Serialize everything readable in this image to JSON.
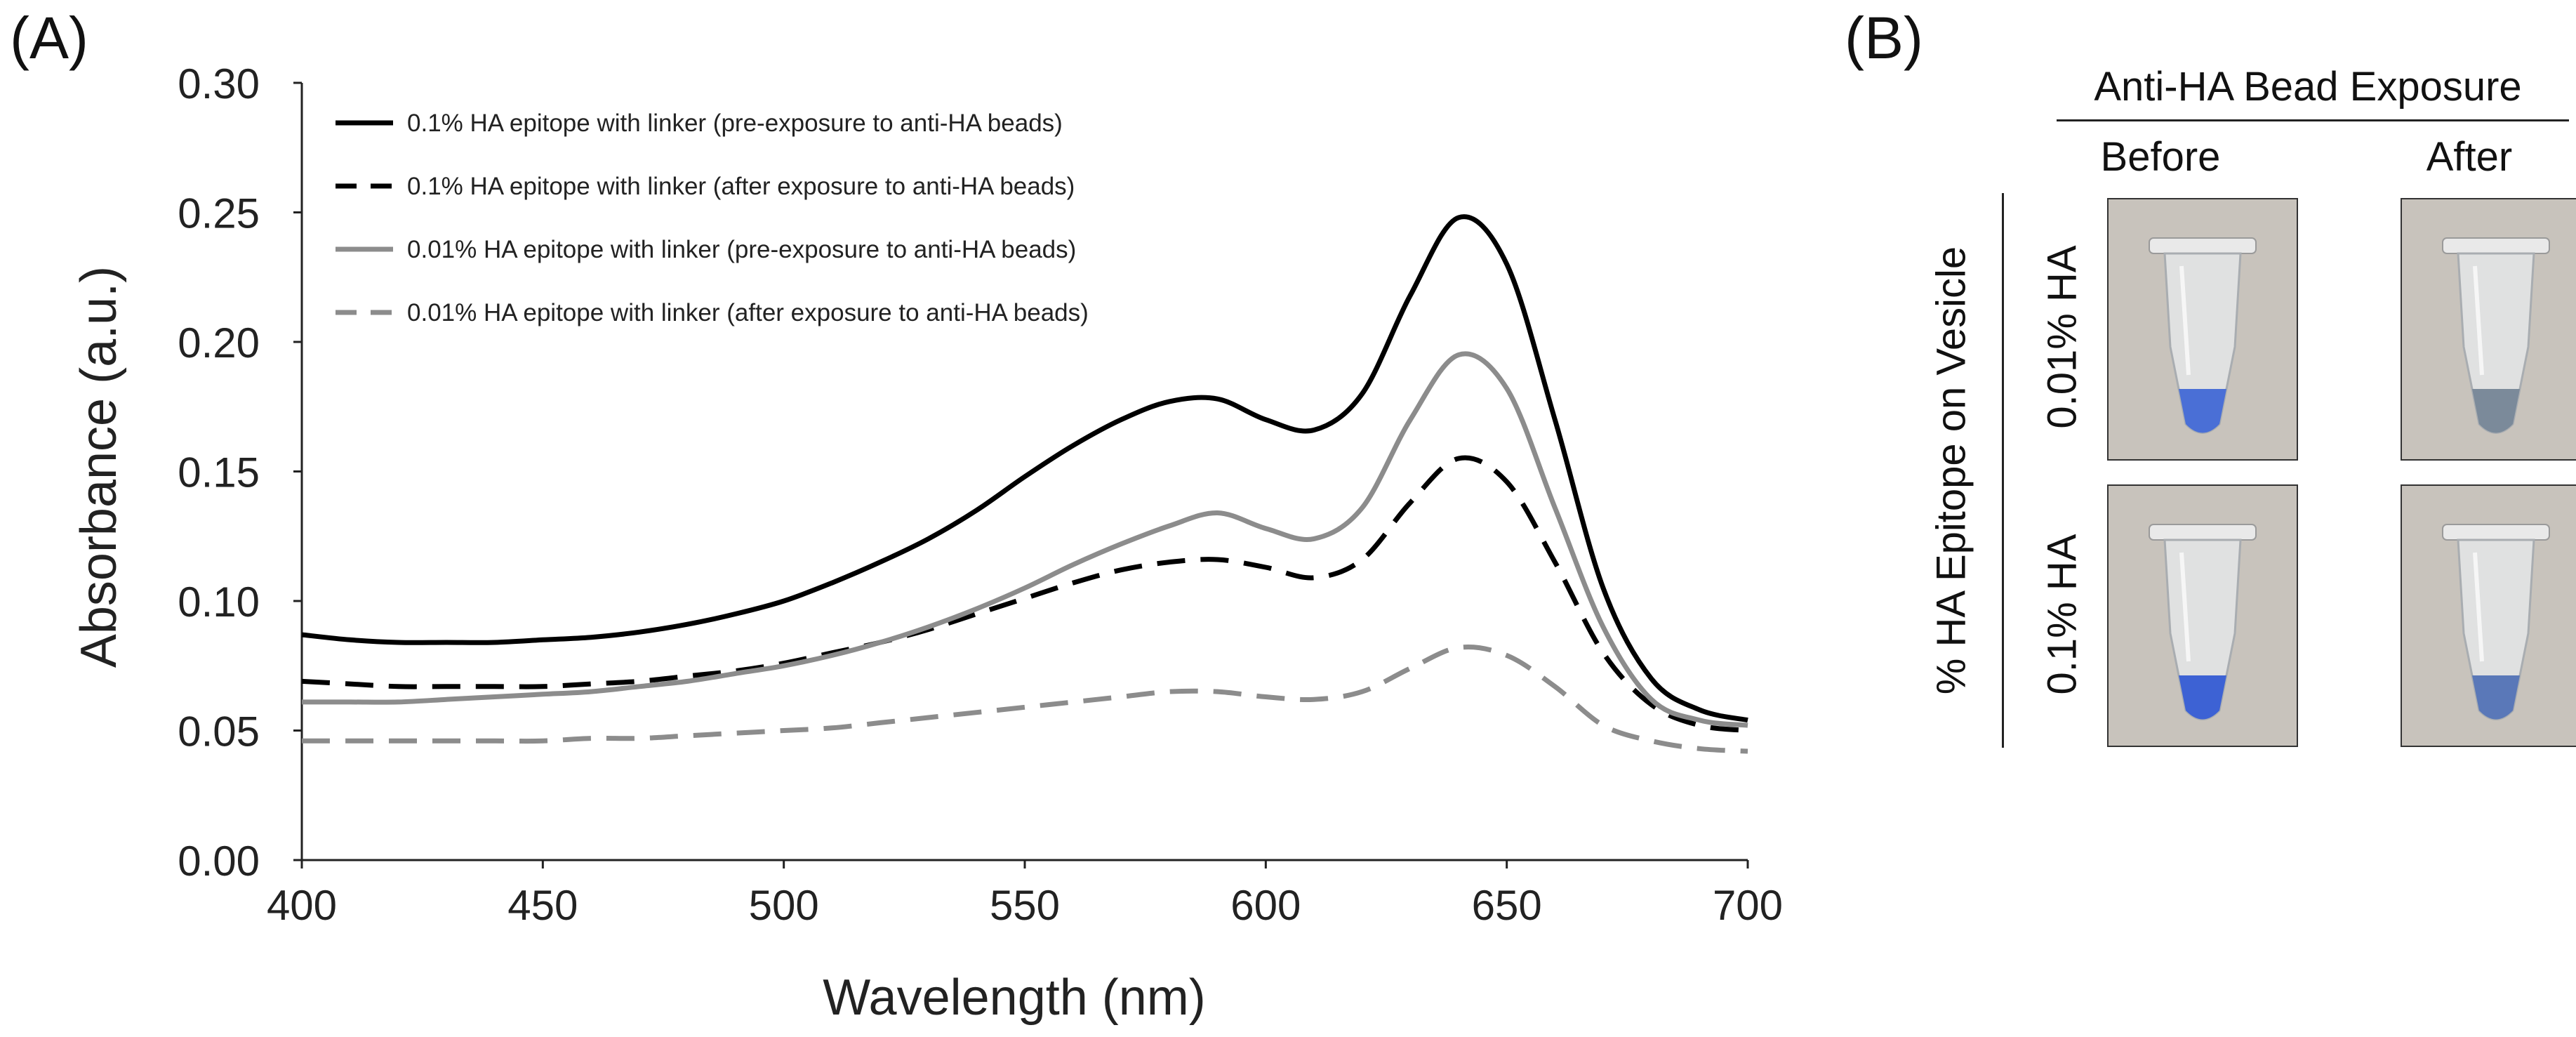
{
  "panel_a_label": "(A)",
  "panel_b_label": "(B)",
  "chart_data": {
    "type": "line",
    "title": "",
    "xlabel": "Wavelength (nm)",
    "ylabel": "Absorbance (a.u.)",
    "xlim": [
      400,
      700
    ],
    "ylim": [
      0,
      0.3
    ],
    "xticks": [
      400,
      450,
      500,
      550,
      600,
      650,
      700
    ],
    "xtick_labels": [
      "400",
      "450",
      "500",
      "550",
      "600",
      "650",
      "700"
    ],
    "yticks": [
      0,
      0.05,
      0.1,
      0.15,
      0.2,
      0.25,
      0.3
    ],
    "ytick_labels": [
      "0.00",
      "0.05",
      "0.10",
      "0.15",
      "0.20",
      "0.25",
      "0.30"
    ],
    "grid": false,
    "legend_position": "top-left",
    "x": [
      400,
      410,
      420,
      430,
      440,
      450,
      460,
      470,
      480,
      490,
      500,
      510,
      520,
      530,
      540,
      550,
      560,
      570,
      580,
      590,
      600,
      610,
      620,
      630,
      640,
      650,
      660,
      670,
      680,
      690,
      700
    ],
    "series": [
      {
        "name": "0.1% HA epitope with linker (pre-exposure to anti-HA beads)",
        "color": "#000000",
        "dash": "solid",
        "values": [
          0.087,
          0.085,
          0.084,
          0.084,
          0.084,
          0.085,
          0.086,
          0.088,
          0.091,
          0.095,
          0.1,
          0.107,
          0.115,
          0.124,
          0.135,
          0.148,
          0.16,
          0.17,
          0.177,
          0.178,
          0.17,
          0.166,
          0.18,
          0.218,
          0.248,
          0.23,
          0.17,
          0.105,
          0.07,
          0.058,
          0.054
        ]
      },
      {
        "name": "0.1% HA epitope with linker (after exposure to anti-HA beads)",
        "color": "#000000",
        "dash": "dashed",
        "values": [
          0.069,
          0.068,
          0.067,
          0.067,
          0.067,
          0.067,
          0.068,
          0.069,
          0.071,
          0.073,
          0.076,
          0.08,
          0.084,
          0.089,
          0.095,
          0.101,
          0.107,
          0.112,
          0.115,
          0.116,
          0.113,
          0.109,
          0.116,
          0.138,
          0.155,
          0.146,
          0.115,
          0.08,
          0.06,
          0.052,
          0.05
        ]
      },
      {
        "name": "0.01% HA epitope with linker (pre-exposure to anti-HA beads)",
        "color": "#8c8c8c",
        "dash": "solid",
        "values": [
          0.061,
          0.061,
          0.061,
          0.062,
          0.063,
          0.064,
          0.065,
          0.067,
          0.069,
          0.072,
          0.075,
          0.079,
          0.084,
          0.09,
          0.097,
          0.105,
          0.114,
          0.122,
          0.129,
          0.134,
          0.128,
          0.124,
          0.136,
          0.17,
          0.195,
          0.182,
          0.136,
          0.09,
          0.062,
          0.054,
          0.052
        ]
      },
      {
        "name": "0.01% HA epitope with linker (after exposure to anti-HA beads)",
        "color": "#8c8c8c",
        "dash": "dashed",
        "values": [
          0.046,
          0.046,
          0.046,
          0.046,
          0.046,
          0.046,
          0.047,
          0.047,
          0.048,
          0.049,
          0.05,
          0.051,
          0.053,
          0.055,
          0.057,
          0.059,
          0.061,
          0.063,
          0.065,
          0.065,
          0.063,
          0.062,
          0.065,
          0.074,
          0.082,
          0.079,
          0.067,
          0.052,
          0.046,
          0.043,
          0.042
        ]
      }
    ]
  },
  "panel_b": {
    "header": "Anti-HA Bead Exposure",
    "col_before": "Before",
    "col_after": "After",
    "ylabel": "% HA Epitope on Vesicle",
    "rows": [
      {
        "label": "0.01% HA",
        "before_color": "#4a6fd6",
        "after_color": "#7b8a9a"
      },
      {
        "label": "0.1% HA",
        "before_color": "#3d62d4",
        "after_color": "#5a78b8"
      }
    ]
  }
}
